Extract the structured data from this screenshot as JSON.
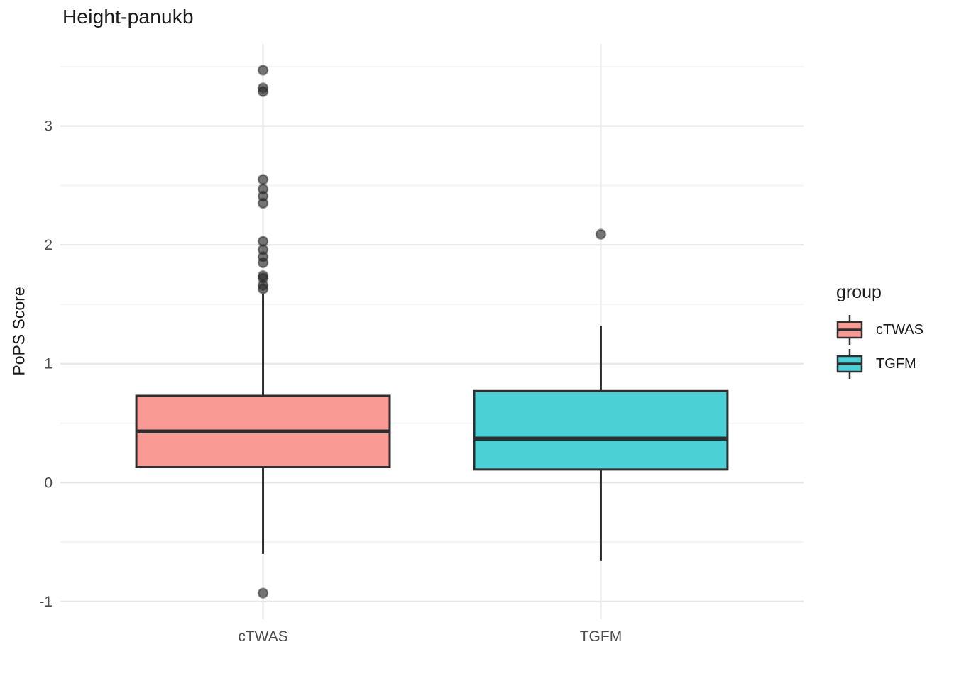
{
  "title": "Height-panukb",
  "y_axis": {
    "label": "PoPS Score",
    "tick_labels": [
      "3",
      "2",
      "1",
      "0",
      "-1"
    ]
  },
  "x_axis": {
    "tick_labels": [
      "cTWAS",
      "TGFM"
    ]
  },
  "legend": {
    "title": "group",
    "entries": [
      {
        "label": "cTWAS",
        "fill": "#F99A94"
      },
      {
        "label": "TGFM",
        "fill": "#4BD1D5"
      }
    ]
  },
  "colors": {
    "box_stroke": "#2e2e2e",
    "grid_major": "#e7e7e7",
    "grid_minor": "#f2f2f2",
    "tick_label": "#4d4d4d",
    "text": "#1a1a1a",
    "outlier_fill": "#232323"
  },
  "chart_data": {
    "type": "boxplot",
    "title": "Height-panukb",
    "xlabel": "",
    "ylabel": "PoPS Score",
    "categories": [
      "cTWAS",
      "TGFM"
    ],
    "yticks": [
      -1,
      0,
      1,
      2,
      3
    ],
    "minor_yticks": [
      -0.5,
      0.5,
      1.5,
      2.5,
      3.5
    ],
    "ylim": [
      -1.15,
      3.69
    ],
    "grid": "horizontal major+minor, vertical major at category centers, no axis lines",
    "legend_position": "right",
    "legend_title": "group",
    "series": [
      {
        "name": "cTWAS",
        "fill": "#F99A94",
        "q1": 0.13,
        "median": 0.43,
        "q3": 0.73,
        "whisker_low": -0.6,
        "whisker_high": 1.59,
        "outliers": [
          3.47,
          3.32,
          3.29,
          2.55,
          2.47,
          2.41,
          2.35,
          2.03,
          1.96,
          1.9,
          1.85,
          1.74,
          1.72,
          1.66,
          1.63,
          -0.93
        ]
      },
      {
        "name": "TGFM",
        "fill": "#4BD1D5",
        "q1": 0.11,
        "median": 0.37,
        "q3": 0.77,
        "whisker_low": -0.66,
        "whisker_high": 1.32,
        "outliers": [
          2.09
        ]
      }
    ]
  }
}
